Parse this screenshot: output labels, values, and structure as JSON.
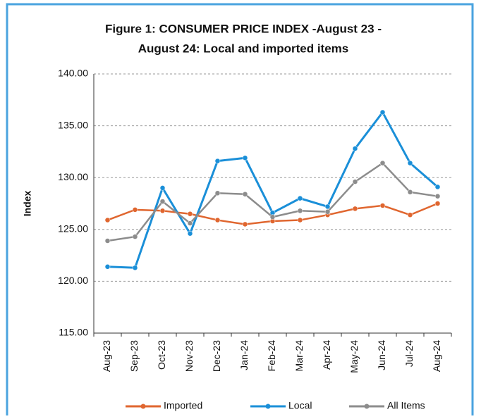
{
  "chart_data": {
    "type": "line",
    "title": [
      "Figure 1: CONSUMER PRICE INDEX -August 23 -",
      "August 24: Local and imported items"
    ],
    "ylabel": "Index",
    "categories": [
      "Aug-23",
      "Sep-23",
      "Oct-23",
      "Nov-23",
      "Dec-23",
      "Jan-24",
      "Feb-24",
      "Mar-24",
      "Apr-24",
      "May-24",
      "Jun-24",
      "Jul-24",
      "Aug-24"
    ],
    "series": [
      {
        "name": "Imported",
        "color": "#e0662f",
        "values": [
          125.9,
          126.9,
          126.8,
          126.5,
          125.9,
          125.5,
          125.8,
          125.9,
          126.4,
          127.0,
          127.3,
          126.4,
          127.5
        ]
      },
      {
        "name": "Local",
        "color": "#1a8fd8",
        "values": [
          121.4,
          121.3,
          129.0,
          124.6,
          131.6,
          131.9,
          126.6,
          128.0,
          127.2,
          132.8,
          136.3,
          131.4,
          129.1
        ]
      },
      {
        "name": "All Items",
        "color": "#8c8c8c",
        "values": [
          123.9,
          124.3,
          127.7,
          125.6,
          128.5,
          128.4,
          126.2,
          126.8,
          126.7,
          129.6,
          131.4,
          128.6,
          128.2
        ]
      }
    ],
    "ylim": [
      115,
      140
    ],
    "yticks": [
      {
        "value": 115,
        "label": "115.00"
      },
      {
        "value": 120,
        "label": "120.00"
      },
      {
        "value": 125,
        "label": "125.00"
      },
      {
        "value": 130,
        "label": "130.00"
      },
      {
        "value": 135,
        "label": "135.00"
      },
      {
        "value": 140,
        "label": "140.00"
      }
    ],
    "grid": true,
    "legend": "bottom"
  }
}
